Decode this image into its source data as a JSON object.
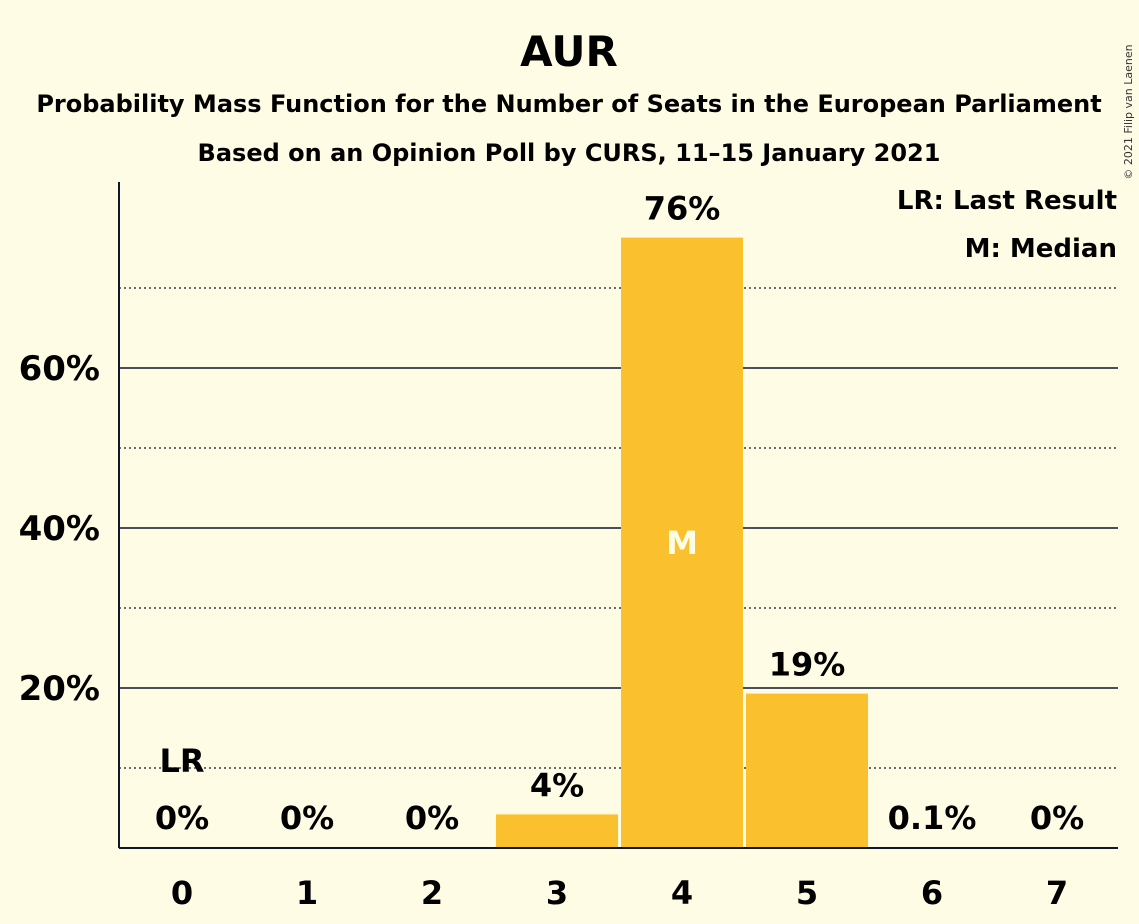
{
  "chart_data": {
    "type": "bar",
    "title": "AUR",
    "subtitle_1": "Probability Mass Function for the Number of Seats in the European Parliament",
    "subtitle_2": "Based on an Opinion Poll by CURS, 11–15 January 2021",
    "copyright": "© 2021 Filip van Laenen",
    "categories": [
      "0",
      "1",
      "2",
      "3",
      "4",
      "5",
      "6",
      "7"
    ],
    "values": [
      0,
      0,
      0,
      4.2,
      76.3,
      19.3,
      0.1,
      0
    ],
    "value_labels": [
      "0%",
      "0%",
      "0%",
      "4%",
      "76%",
      "19%",
      "0.1%",
      "0%"
    ],
    "ylim": [
      0,
      83
    ],
    "y_major_ticks": [
      20,
      40,
      60
    ],
    "y_tick_labels": [
      "20%",
      "40%",
      "60%"
    ],
    "y_minor_gridlines": [
      10,
      30,
      50,
      70
    ],
    "last_result_index": 0,
    "last_result_marker": "LR",
    "median_index": 4,
    "median_marker": "M",
    "legend": [
      "LR: Last Result",
      "M: Median"
    ],
    "legend_position": "top-right",
    "bar_color": "#FBC02D",
    "grid": true
  }
}
